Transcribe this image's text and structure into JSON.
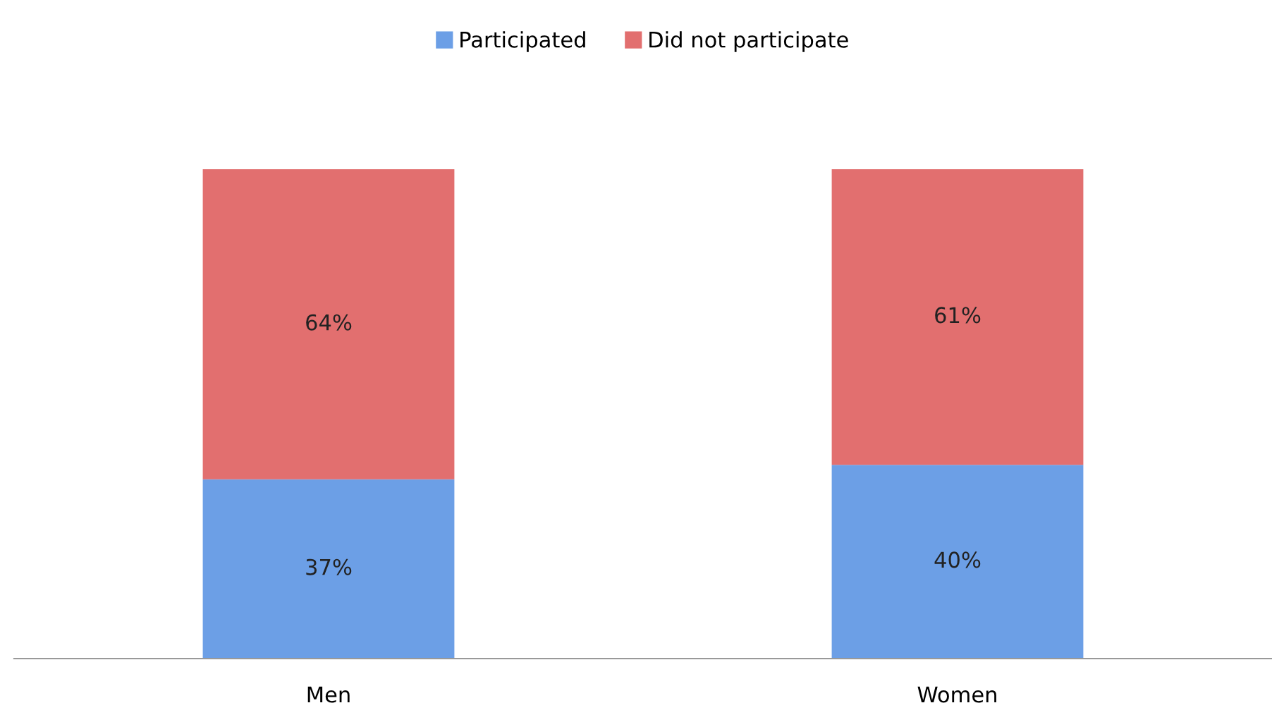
{
  "chart_data": {
    "type": "bar",
    "stacked": true,
    "legend": "top",
    "categories": [
      "Men",
      "Women"
    ],
    "series": [
      {
        "name": "Participated",
        "color": "#6c9fe6",
        "values": [
          37,
          40
        ],
        "value_labels": [
          "37%",
          "40%"
        ]
      },
      {
        "name": "Did not participate",
        "color": "#e26f6f",
        "values": [
          64,
          61
        ],
        "value_labels": [
          "64%",
          "61%"
        ]
      }
    ]
  }
}
